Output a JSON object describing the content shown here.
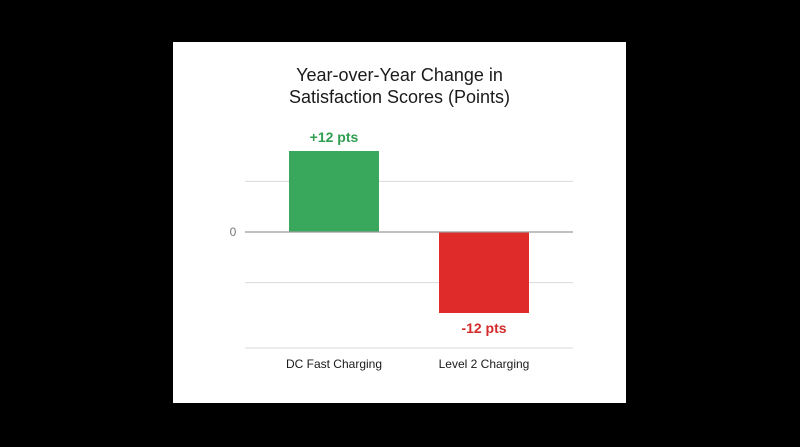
{
  "chart_data": {
    "type": "bar",
    "title_lines": [
      "Year-over-Year Change in",
      "Satisfaction Scores (Points)"
    ],
    "categories": [
      "DC Fast Charging",
      "Level 2 Charging"
    ],
    "values": [
      12,
      -12
    ],
    "data_labels": [
      "+12 pts",
      "-12 pts"
    ],
    "bar_colors": [
      "#3aa85c",
      "#e02b2b"
    ],
    "label_colors": [
      "#2f9e4f",
      "#d42a2a"
    ],
    "y_tick_labels": [
      {
        "value": 0,
        "label": "0"
      }
    ],
    "ylim": [
      -17,
      12.5
    ],
    "gridlines": [
      7.5,
      0,
      -7.5
    ],
    "grid": true,
    "legend": "none"
  }
}
